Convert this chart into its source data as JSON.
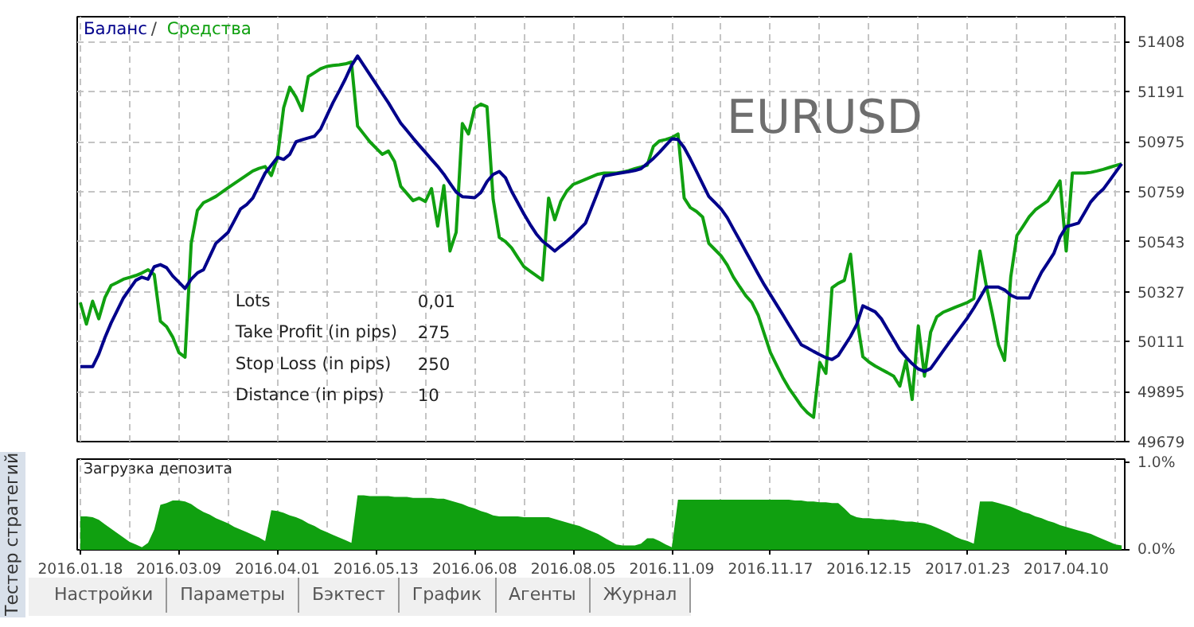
{
  "chart_data": [
    {
      "type": "line",
      "legend": "top left",
      "subtitle": "EURUSD",
      "grid": true,
      "tick_labels": "y",
      "annotations": [
        "/",
        "Lots",
        "0,01",
        "Take Profit (in pips)",
        "275",
        "Stop Loss (in pips)",
        "250",
        "Distance (in pips)",
        "10"
      ],
      "categories": [
        "2016.01.18",
        null,
        null,
        null,
        null,
        null,
        null,
        null,
        null,
        null,
        null,
        null,
        null,
        null,
        null,
        null,
        "2016.03.09",
        null,
        null,
        null,
        null,
        null,
        null,
        null,
        null,
        null,
        null,
        null,
        null,
        null,
        null,
        null,
        "2016.04.01",
        null,
        null,
        null,
        null,
        null,
        null,
        null,
        null,
        null,
        null,
        null,
        null,
        null,
        null,
        null,
        "2016.05.13",
        null,
        null,
        null,
        null,
        null,
        null,
        null,
        null,
        null,
        null,
        null,
        null,
        null,
        null,
        null,
        "2016.06.08",
        null,
        null,
        null,
        null,
        null,
        null,
        null,
        null,
        null,
        null,
        null,
        null,
        null,
        null,
        null,
        "2016.08.05",
        null,
        null,
        null,
        null,
        null,
        null,
        null,
        null,
        null,
        null,
        null,
        null,
        null,
        null,
        null,
        "2016.11.09",
        null,
        null,
        null,
        null,
        null,
        null,
        null,
        null,
        null,
        null,
        null,
        null,
        null,
        null,
        null,
        "2016.11.17",
        null,
        null,
        null,
        null,
        null,
        null,
        null,
        null,
        null,
        null,
        null,
        null,
        null,
        null,
        null,
        "2016.12.15",
        null,
        null,
        null,
        null,
        null,
        null,
        null,
        null,
        null,
        null,
        null,
        null,
        null,
        null,
        null,
        "2017.01.23",
        null,
        null,
        null,
        null,
        null,
        null,
        null,
        null,
        null,
        null,
        null,
        null,
        null,
        null,
        null,
        "2017.04.10",
        null,
        null,
        null,
        null,
        null,
        null,
        null,
        null,
        null
      ],
      "ylim": [
        49679,
        51516
      ],
      "yticks": [
        49679,
        49895,
        50111,
        50327,
        50543,
        50759,
        50975,
        51191,
        51408
      ],
      "series": [
        {
          "name": "Средства",
          "color": "#10a010",
          "values": [
            50280,
            50187,
            50286,
            50210,
            50302,
            50354,
            50367,
            50381,
            50389,
            50397,
            50408,
            50422,
            50401,
            50199,
            50176,
            50131,
            50064,
            50044,
            50536,
            50678,
            50712,
            50725,
            50739,
            50758,
            50777,
            50795,
            50813,
            50831,
            50849,
            50860,
            50868,
            50829,
            50908,
            51122,
            51211,
            51169,
            51110,
            51257,
            51274,
            51291,
            51301,
            51305,
            51308,
            51312,
            51320,
            51043,
            51009,
            50975,
            50948,
            50921,
            50935,
            50890,
            50783,
            50752,
            50721,
            50732,
            50717,
            50773,
            50611,
            50786,
            50503,
            50584,
            51054,
            51009,
            51121,
            51138,
            51127,
            50727,
            50562,
            50544,
            50516,
            50475,
            50435,
            50416,
            50397,
            50378,
            50732,
            50638,
            50719,
            50764,
            50791,
            50802,
            50813,
            50824,
            50835,
            50840,
            50840,
            50840,
            50844,
            50851,
            50859,
            50866,
            50874,
            50955,
            50979,
            50985,
            50993,
            51009,
            50732,
            50691,
            50674,
            50650,
            50536,
            50509,
            50482,
            50442,
            50390,
            50349,
            50310,
            50280,
            50226,
            50145,
            50064,
            50010,
            49956,
            49910,
            49872,
            49833,
            49804,
            49784,
            50021,
            49974,
            50344,
            50363,
            50376,
            50489,
            50216,
            50046,
            50023,
            50006,
            49991,
            49977,
            49962,
            49919,
            50030,
            49861,
            50179,
            49962,
            50152,
            50219,
            50238,
            50249,
            50260,
            50270,
            50281,
            50297,
            50503,
            50357,
            50233,
            50098,
            50030,
            50390,
            50570,
            50610,
            50651,
            50681,
            50700,
            50719,
            50762,
            50806,
            50503,
            50840,
            50840,
            50840,
            50843,
            50849,
            50856,
            50864,
            50872,
            50880
          ]
        },
        {
          "name": "Баланс",
          "color": "#00008b",
          "values": [
            50003,
            50003,
            50003,
            50057,
            50129,
            50192,
            50246,
            50300,
            50338,
            50376,
            50390,
            50381,
            50435,
            50444,
            50431,
            50395,
            50368,
            50341,
            50381,
            50408,
            50422,
            50479,
            50536,
            50560,
            50584,
            50634,
            50685,
            50704,
            50732,
            50786,
            50840,
            50874,
            50908,
            50899,
            50921,
            50975,
            50984,
            50992,
            50999,
            51030,
            51087,
            51144,
            51194,
            51246,
            51304,
            51346,
            51306,
            51265,
            51225,
            51184,
            51144,
            51100,
            51056,
            51024,
            50991,
            50960,
            50930,
            50899,
            50869,
            50835,
            50796,
            50758,
            50738,
            50736,
            50733,
            50756,
            50803,
            50834,
            50847,
            50820,
            50761,
            50712,
            50663,
            50618,
            50577,
            50546,
            50525,
            50503,
            50525,
            50546,
            50570,
            50597,
            50624,
            50692,
            50759,
            50827,
            50832,
            50837,
            50842,
            50846,
            50851,
            50859,
            50881,
            50903,
            50930,
            50959,
            50988,
            50985,
            50950,
            50901,
            50847,
            50793,
            50739,
            50712,
            50685,
            50647,
            50598,
            50550,
            50501,
            50453,
            50404,
            50357,
            50314,
            50271,
            50228,
            50184,
            50141,
            50098,
            50084,
            50069,
            50055,
            50042,
            50034,
            50051,
            50092,
            50134,
            50185,
            50266,
            50253,
            50240,
            50210,
            50165,
            50120,
            50075,
            50044,
            50016,
            49993,
            49982,
            49995,
            50032,
            50070,
            50107,
            50143,
            50179,
            50215,
            50256,
            50301,
            50347,
            50347,
            50347,
            50335,
            50312,
            50300,
            50300,
            50300,
            50358,
            50411,
            50452,
            50493,
            50564,
            50608,
            50616,
            50624,
            50670,
            50716,
            50746,
            50770,
            50806,
            50843,
            50880
          ]
        }
      ]
    },
    {
      "type": "area",
      "title": "Загрузка депозита",
      "color": "#10a010",
      "grid": "x",
      "categories": [
        "2016.01.18",
        null,
        null,
        null,
        null,
        null,
        null,
        null,
        null,
        null,
        null,
        null,
        null,
        null,
        null,
        null,
        "2016.03.09",
        null,
        null,
        null,
        null,
        null,
        null,
        null,
        null,
        null,
        null,
        null,
        null,
        null,
        null,
        null,
        "2016.04.01",
        null,
        null,
        null,
        null,
        null,
        null,
        null,
        null,
        null,
        null,
        null,
        null,
        null,
        null,
        null,
        "2016.05.13",
        null,
        null,
        null,
        null,
        null,
        null,
        null,
        null,
        null,
        null,
        null,
        null,
        null,
        null,
        null,
        "2016.06.08",
        null,
        null,
        null,
        null,
        null,
        null,
        null,
        null,
        null,
        null,
        null,
        null,
        null,
        null,
        null,
        "2016.08.05",
        null,
        null,
        null,
        null,
        null,
        null,
        null,
        null,
        null,
        null,
        null,
        null,
        null,
        null,
        null,
        "2016.11.09",
        null,
        null,
        null,
        null,
        null,
        null,
        null,
        null,
        null,
        null,
        null,
        null,
        null,
        null,
        null,
        "2016.11.17",
        null,
        null,
        null,
        null,
        null,
        null,
        null,
        null,
        null,
        null,
        null,
        null,
        null,
        null,
        null,
        "2016.12.15",
        null,
        null,
        null,
        null,
        null,
        null,
        null,
        null,
        null,
        null,
        null,
        null,
        null,
        null,
        null,
        "2017.01.23",
        null,
        null,
        null,
        null,
        null,
        null,
        null,
        null,
        null,
        null,
        null,
        null,
        null,
        null,
        null,
        "2017.04.10",
        null,
        null,
        null,
        null,
        null,
        null,
        null,
        null,
        null
      ],
      "ylim": [
        0,
        1.03
      ],
      "yticks": [
        {
          "value": 0,
          "label": "0.0%"
        },
        {
          "value": 1,
          "label": "1.0%"
        }
      ],
      "values": [
        0.38,
        0.38,
        0.37,
        0.34,
        0.29,
        0.24,
        0.19,
        0.14,
        0.09,
        0.06,
        0.03,
        0.08,
        0.23,
        0.51,
        0.53,
        0.56,
        0.56,
        0.55,
        0.52,
        0.47,
        0.43,
        0.4,
        0.36,
        0.33,
        0.3,
        0.26,
        0.23,
        0.2,
        0.17,
        0.14,
        0.1,
        0.45,
        0.44,
        0.42,
        0.39,
        0.37,
        0.34,
        0.3,
        0.27,
        0.23,
        0.2,
        0.17,
        0.14,
        0.11,
        0.08,
        0.62,
        0.62,
        0.61,
        0.61,
        0.61,
        0.61,
        0.6,
        0.6,
        0.6,
        0.59,
        0.59,
        0.59,
        0.59,
        0.58,
        0.58,
        0.56,
        0.54,
        0.52,
        0.49,
        0.47,
        0.44,
        0.42,
        0.39,
        0.38,
        0.38,
        0.38,
        0.38,
        0.37,
        0.37,
        0.37,
        0.37,
        0.37,
        0.35,
        0.33,
        0.31,
        0.29,
        0.27,
        0.24,
        0.21,
        0.18,
        0.14,
        0.1,
        0.06,
        0.05,
        0.05,
        0.05,
        0.07,
        0.13,
        0.13,
        0.1,
        0.06,
        0.03,
        0.57,
        0.57,
        0.57,
        0.57,
        0.57,
        0.57,
        0.57,
        0.57,
        0.57,
        0.57,
        0.57,
        0.57,
        0.57,
        0.57,
        0.57,
        0.57,
        0.57,
        0.57,
        0.57,
        0.56,
        0.56,
        0.55,
        0.55,
        0.54,
        0.54,
        0.53,
        0.53,
        0.47,
        0.4,
        0.37,
        0.36,
        0.36,
        0.35,
        0.35,
        0.34,
        0.34,
        0.33,
        0.32,
        0.32,
        0.31,
        0.3,
        0.28,
        0.25,
        0.22,
        0.19,
        0.15,
        0.12,
        0.1,
        0.07,
        0.55,
        0.55,
        0.55,
        0.53,
        0.51,
        0.49,
        0.46,
        0.43,
        0.41,
        0.38,
        0.36,
        0.33,
        0.31,
        0.28,
        0.26,
        0.24,
        0.22,
        0.2,
        0.18,
        0.15,
        0.12,
        0.09,
        0.06,
        0.05
      ]
    },
    {
      "type": "other",
      "annotations": [
        "Тестер стратегий",
        "Настройки",
        "Параметры",
        "Бэктест",
        "График",
        "Агенты",
        "Журнал"
      ]
    }
  ]
}
